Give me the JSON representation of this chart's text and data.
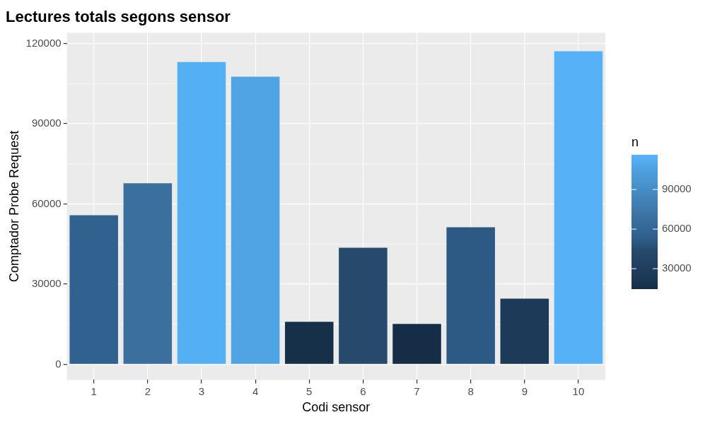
{
  "chart_data": {
    "type": "bar",
    "title": "Lectures totals segons sensor",
    "xlabel": "Codi sensor",
    "ylabel": "Comptador Probe Request",
    "clabel": "n",
    "categories": [
      "1",
      "2",
      "3",
      "4",
      "5",
      "6",
      "7",
      "8",
      "9",
      "10"
    ],
    "values": [
      55800,
      67700,
      113100,
      107600,
      15900,
      43600,
      15100,
      51300,
      24600,
      117100
    ],
    "colors": [
      "#31628f",
      "#3a6f9e",
      "#55aff3",
      "#50a4e4",
      "#16304a",
      "#26496c",
      "#152d46",
      "#2d5a84",
      "#1d3a58",
      "#56b1f7"
    ],
    "ylim": [
      -5800,
      124000
    ],
    "yticks": [
      0,
      30000,
      60000,
      90000,
      120000
    ],
    "clim": [
      14500,
      116300
    ],
    "cticks": [
      30000,
      60000,
      90000
    ],
    "grid": true
  }
}
